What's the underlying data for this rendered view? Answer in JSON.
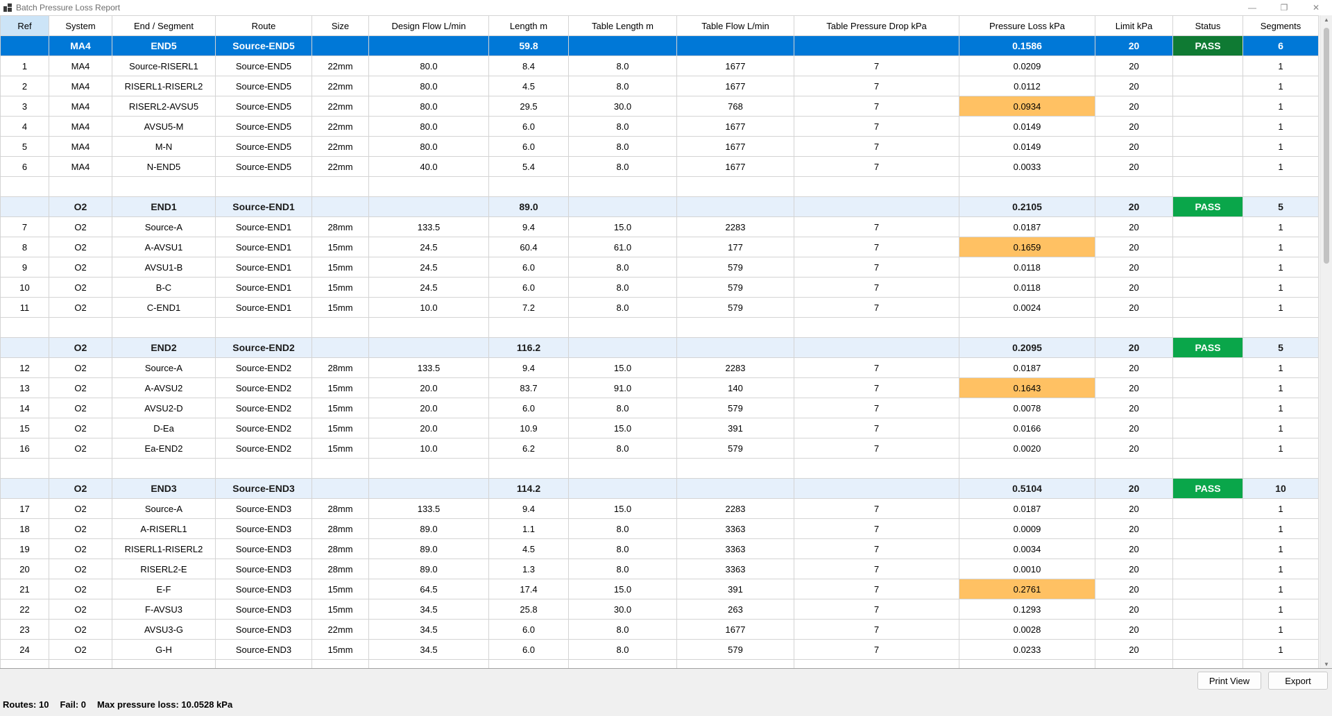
{
  "window": {
    "title": "Batch Pressure Loss Report"
  },
  "columns": [
    "Ref",
    "System",
    "End / Segment",
    "Route",
    "Size",
    "Design Flow L/min",
    "Length m",
    "Table Length m",
    "Table Flow L/min",
    "Table Pressure Drop kPa",
    "Pressure Loss kPa",
    "Limit kPa",
    "Status",
    "Segments"
  ],
  "groups": [
    {
      "system": "MA4",
      "end": "END5",
      "route": "Source-END5",
      "length": "59.8",
      "loss": "0.1586",
      "limit": "20",
      "status": "PASS",
      "segments": "6",
      "active": true,
      "rows": [
        {
          "ref": "1",
          "system": "MA4",
          "segment": "Source-RISERL1",
          "route": "Source-END5",
          "size": "22mm",
          "flow": "80.0",
          "length": "8.4",
          "tlen": "8.0",
          "tflow": "1677",
          "tdrop": "7",
          "loss": "0.0209",
          "limit": "20",
          "seg": "1",
          "hl": false
        },
        {
          "ref": "2",
          "system": "MA4",
          "segment": "RISERL1-RISERL2",
          "route": "Source-END5",
          "size": "22mm",
          "flow": "80.0",
          "length": "4.5",
          "tlen": "8.0",
          "tflow": "1677",
          "tdrop": "7",
          "loss": "0.0112",
          "limit": "20",
          "seg": "1",
          "hl": false
        },
        {
          "ref": "3",
          "system": "MA4",
          "segment": "RISERL2-AVSU5",
          "route": "Source-END5",
          "size": "22mm",
          "flow": "80.0",
          "length": "29.5",
          "tlen": "30.0",
          "tflow": "768",
          "tdrop": "7",
          "loss": "0.0934",
          "limit": "20",
          "seg": "1",
          "hl": true
        },
        {
          "ref": "4",
          "system": "MA4",
          "segment": "AVSU5-M",
          "route": "Source-END5",
          "size": "22mm",
          "flow": "80.0",
          "length": "6.0",
          "tlen": "8.0",
          "tflow": "1677",
          "tdrop": "7",
          "loss": "0.0149",
          "limit": "20",
          "seg": "1",
          "hl": false
        },
        {
          "ref": "5",
          "system": "MA4",
          "segment": "M-N",
          "route": "Source-END5",
          "size": "22mm",
          "flow": "80.0",
          "length": "6.0",
          "tlen": "8.0",
          "tflow": "1677",
          "tdrop": "7",
          "loss": "0.0149",
          "limit": "20",
          "seg": "1",
          "hl": false
        },
        {
          "ref": "6",
          "system": "MA4",
          "segment": "N-END5",
          "route": "Source-END5",
          "size": "22mm",
          "flow": "40.0",
          "length": "5.4",
          "tlen": "8.0",
          "tflow": "1677",
          "tdrop": "7",
          "loss": "0.0033",
          "limit": "20",
          "seg": "1",
          "hl": false
        }
      ]
    },
    {
      "system": "O2",
      "end": "END1",
      "route": "Source-END1",
      "length": "89.0",
      "loss": "0.2105",
      "limit": "20",
      "status": "PASS",
      "segments": "5",
      "active": false,
      "rows": [
        {
          "ref": "7",
          "system": "O2",
          "segment": "Source-A",
          "route": "Source-END1",
          "size": "28mm",
          "flow": "133.5",
          "length": "9.4",
          "tlen": "15.0",
          "tflow": "2283",
          "tdrop": "7",
          "loss": "0.0187",
          "limit": "20",
          "seg": "1",
          "hl": false
        },
        {
          "ref": "8",
          "system": "O2",
          "segment": "A-AVSU1",
          "route": "Source-END1",
          "size": "15mm",
          "flow": "24.5",
          "length": "60.4",
          "tlen": "61.0",
          "tflow": "177",
          "tdrop": "7",
          "loss": "0.1659",
          "limit": "20",
          "seg": "1",
          "hl": true
        },
        {
          "ref": "9",
          "system": "O2",
          "segment": "AVSU1-B",
          "route": "Source-END1",
          "size": "15mm",
          "flow": "24.5",
          "length": "6.0",
          "tlen": "8.0",
          "tflow": "579",
          "tdrop": "7",
          "loss": "0.0118",
          "limit": "20",
          "seg": "1",
          "hl": false
        },
        {
          "ref": "10",
          "system": "O2",
          "segment": "B-C",
          "route": "Source-END1",
          "size": "15mm",
          "flow": "24.5",
          "length": "6.0",
          "tlen": "8.0",
          "tflow": "579",
          "tdrop": "7",
          "loss": "0.0118",
          "limit": "20",
          "seg": "1",
          "hl": false
        },
        {
          "ref": "11",
          "system": "O2",
          "segment": "C-END1",
          "route": "Source-END1",
          "size": "15mm",
          "flow": "10.0",
          "length": "7.2",
          "tlen": "8.0",
          "tflow": "579",
          "tdrop": "7",
          "loss": "0.0024",
          "limit": "20",
          "seg": "1",
          "hl": false
        }
      ]
    },
    {
      "system": "O2",
      "end": "END2",
      "route": "Source-END2",
      "length": "116.2",
      "loss": "0.2095",
      "limit": "20",
      "status": "PASS",
      "segments": "5",
      "active": false,
      "rows": [
        {
          "ref": "12",
          "system": "O2",
          "segment": "Source-A",
          "route": "Source-END2",
          "size": "28mm",
          "flow": "133.5",
          "length": "9.4",
          "tlen": "15.0",
          "tflow": "2283",
          "tdrop": "7",
          "loss": "0.0187",
          "limit": "20",
          "seg": "1",
          "hl": false
        },
        {
          "ref": "13",
          "system": "O2",
          "segment": "A-AVSU2",
          "route": "Source-END2",
          "size": "15mm",
          "flow": "20.0",
          "length": "83.7",
          "tlen": "91.0",
          "tflow": "140",
          "tdrop": "7",
          "loss": "0.1643",
          "limit": "20",
          "seg": "1",
          "hl": true
        },
        {
          "ref": "14",
          "system": "O2",
          "segment": "AVSU2-D",
          "route": "Source-END2",
          "size": "15mm",
          "flow": "20.0",
          "length": "6.0",
          "tlen": "8.0",
          "tflow": "579",
          "tdrop": "7",
          "loss": "0.0078",
          "limit": "20",
          "seg": "1",
          "hl": false
        },
        {
          "ref": "15",
          "system": "O2",
          "segment": "D-Ea",
          "route": "Source-END2",
          "size": "15mm",
          "flow": "20.0",
          "length": "10.9",
          "tlen": "15.0",
          "tflow": "391",
          "tdrop": "7",
          "loss": "0.0166",
          "limit": "20",
          "seg": "1",
          "hl": false
        },
        {
          "ref": "16",
          "system": "O2",
          "segment": "Ea-END2",
          "route": "Source-END2",
          "size": "15mm",
          "flow": "10.0",
          "length": "6.2",
          "tlen": "8.0",
          "tflow": "579",
          "tdrop": "7",
          "loss": "0.0020",
          "limit": "20",
          "seg": "1",
          "hl": false
        }
      ]
    },
    {
      "system": "O2",
      "end": "END3",
      "route": "Source-END3",
      "length": "114.2",
      "loss": "0.5104",
      "limit": "20",
      "status": "PASS",
      "segments": "10",
      "active": false,
      "rows": [
        {
          "ref": "17",
          "system": "O2",
          "segment": "Source-A",
          "route": "Source-END3",
          "size": "28mm",
          "flow": "133.5",
          "length": "9.4",
          "tlen": "15.0",
          "tflow": "2283",
          "tdrop": "7",
          "loss": "0.0187",
          "limit": "20",
          "seg": "1",
          "hl": false
        },
        {
          "ref": "18",
          "system": "O2",
          "segment": "A-RISERL1",
          "route": "Source-END3",
          "size": "28mm",
          "flow": "89.0",
          "length": "1.1",
          "tlen": "8.0",
          "tflow": "3363",
          "tdrop": "7",
          "loss": "0.0009",
          "limit": "20",
          "seg": "1",
          "hl": false
        },
        {
          "ref": "19",
          "system": "O2",
          "segment": "RISERL1-RISERL2",
          "route": "Source-END3",
          "size": "28mm",
          "flow": "89.0",
          "length": "4.5",
          "tlen": "8.0",
          "tflow": "3363",
          "tdrop": "7",
          "loss": "0.0034",
          "limit": "20",
          "seg": "1",
          "hl": false
        },
        {
          "ref": "20",
          "system": "O2",
          "segment": "RISERL2-E",
          "route": "Source-END3",
          "size": "28mm",
          "flow": "89.0",
          "length": "1.3",
          "tlen": "8.0",
          "tflow": "3363",
          "tdrop": "7",
          "loss": "0.0010",
          "limit": "20",
          "seg": "1",
          "hl": false
        },
        {
          "ref": "21",
          "system": "O2",
          "segment": "E-F",
          "route": "Source-END3",
          "size": "15mm",
          "flow": "64.5",
          "length": "17.4",
          "tlen": "15.0",
          "tflow": "391",
          "tdrop": "7",
          "loss": "0.2761",
          "limit": "20",
          "seg": "1",
          "hl": true
        },
        {
          "ref": "22",
          "system": "O2",
          "segment": "F-AVSU3",
          "route": "Source-END3",
          "size": "15mm",
          "flow": "34.5",
          "length": "25.8",
          "tlen": "30.0",
          "tflow": "263",
          "tdrop": "7",
          "loss": "0.1293",
          "limit": "20",
          "seg": "1",
          "hl": false
        },
        {
          "ref": "23",
          "system": "O2",
          "segment": "AVSU3-G",
          "route": "Source-END3",
          "size": "22mm",
          "flow": "34.5",
          "length": "6.0",
          "tlen": "8.0",
          "tflow": "1677",
          "tdrop": "7",
          "loss": "0.0028",
          "limit": "20",
          "seg": "1",
          "hl": false
        },
        {
          "ref": "24",
          "system": "O2",
          "segment": "G-H",
          "route": "Source-END3",
          "size": "15mm",
          "flow": "34.5",
          "length": "6.0",
          "tlen": "8.0",
          "tflow": "579",
          "tdrop": "7",
          "loss": "0.0233",
          "limit": "20",
          "seg": "1",
          "hl": false
        }
      ]
    }
  ],
  "buttons": {
    "print": "Print View",
    "export": "Export"
  },
  "summary": {
    "routes": "Routes: 10",
    "fail": "Fail: 0",
    "max_loss": "Max pressure loss: 10.0528 kPa"
  },
  "colors": {
    "active_row": "#0078d7",
    "group_row": "#e6f0fb",
    "pass": "#0aa64a",
    "highlight": "#ffc163"
  }
}
